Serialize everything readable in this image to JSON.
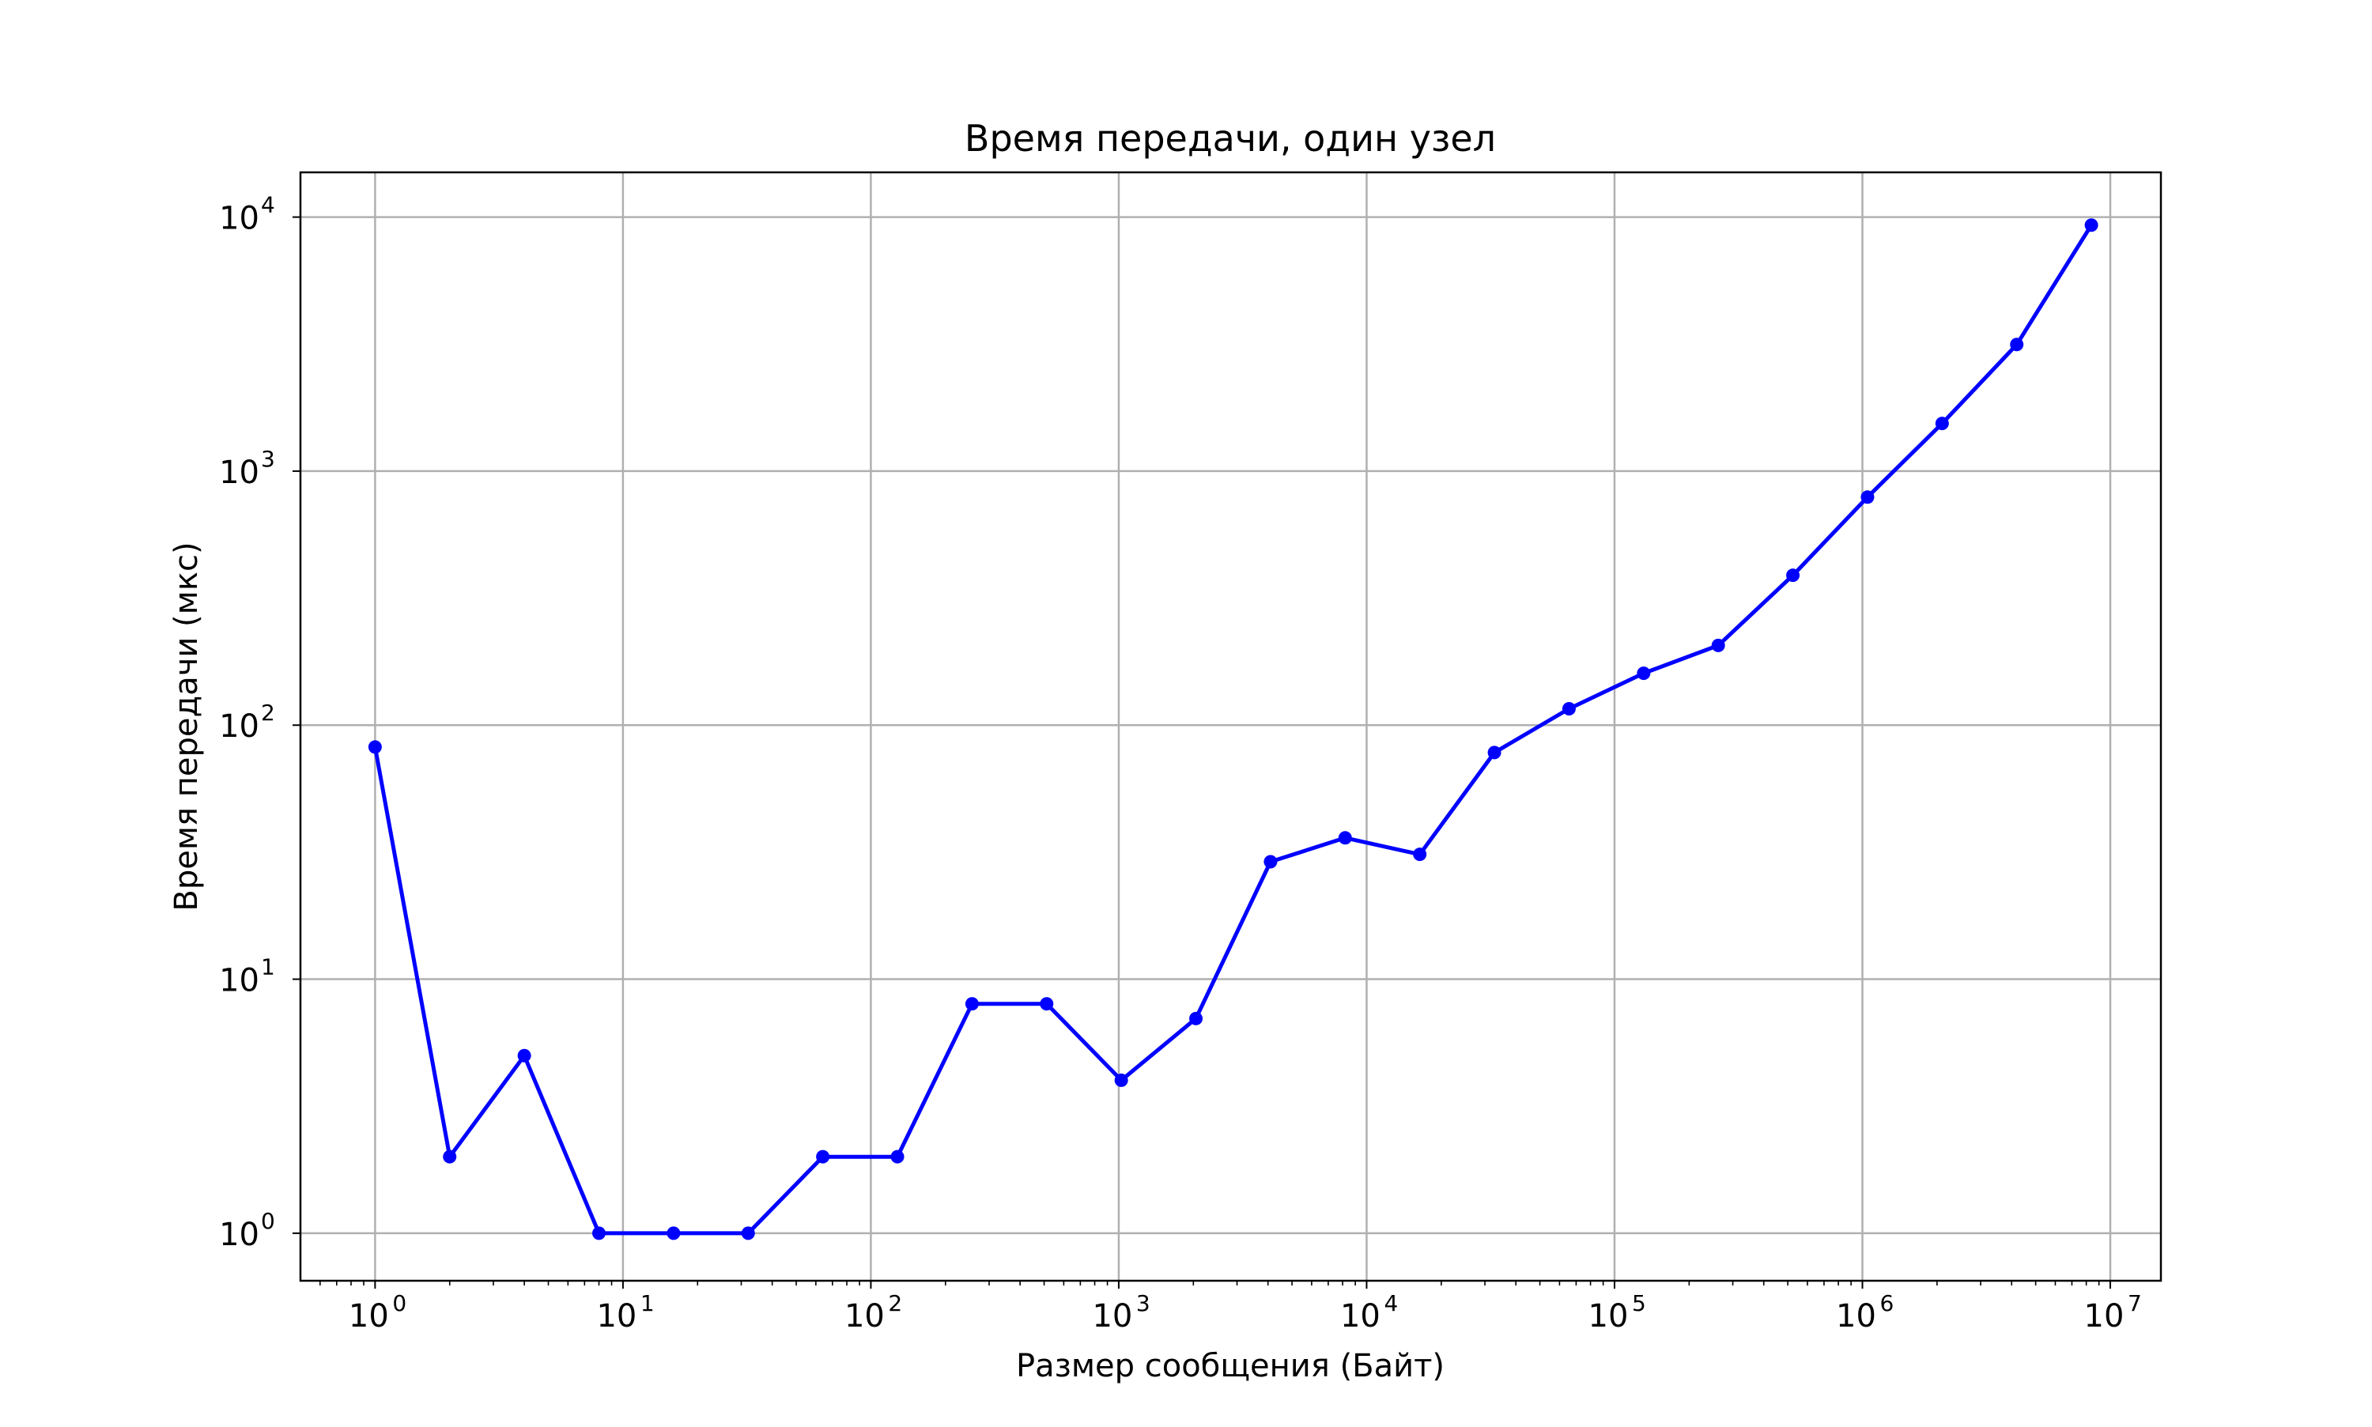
{
  "chart_data": {
    "type": "line",
    "title": "Время передачи, один узел",
    "xlabel": "Размер сообщения (Байт)",
    "ylabel": "Время передачи (мкс)",
    "xscale": "log",
    "yscale": "log",
    "xlim": [
      0.5,
      16000000
    ],
    "ylim": [
      0.65,
      15000
    ],
    "grid": true,
    "x_major_ticks": [
      1,
      10,
      100,
      1000,
      10000,
      100000,
      1000000,
      10000000
    ],
    "x_tick_labels": [
      {
        "base": "10",
        "exp": "0"
      },
      {
        "base": "10",
        "exp": "1"
      },
      {
        "base": "10",
        "exp": "2"
      },
      {
        "base": "10",
        "exp": "3"
      },
      {
        "base": "10",
        "exp": "4"
      },
      {
        "base": "10",
        "exp": "5"
      },
      {
        "base": "10",
        "exp": "6"
      },
      {
        "base": "10",
        "exp": "7"
      }
    ],
    "y_major_ticks": [
      1,
      10,
      100,
      1000,
      10000
    ],
    "y_tick_labels": [
      {
        "base": "10",
        "exp": "0"
      },
      {
        "base": "10",
        "exp": "1"
      },
      {
        "base": "10",
        "exp": "2"
      },
      {
        "base": "10",
        "exp": "3"
      },
      {
        "base": "10",
        "exp": "4"
      }
    ],
    "series": [
      {
        "color": "#0000ff",
        "marker": "circle",
        "x": [
          1,
          2,
          4,
          8,
          16,
          32,
          64,
          128,
          256,
          512,
          1024,
          2048,
          4096,
          8192,
          16384,
          32768,
          65536,
          131072,
          262144,
          524288,
          1048576,
          2097152,
          4194304,
          8388608
        ],
        "y": [
          82,
          2,
          5,
          1,
          1,
          1,
          2,
          2,
          8,
          8,
          4,
          7,
          29,
          36,
          31,
          78,
          116,
          160,
          206,
          389,
          790,
          1540,
          3150,
          9300
        ]
      }
    ]
  }
}
